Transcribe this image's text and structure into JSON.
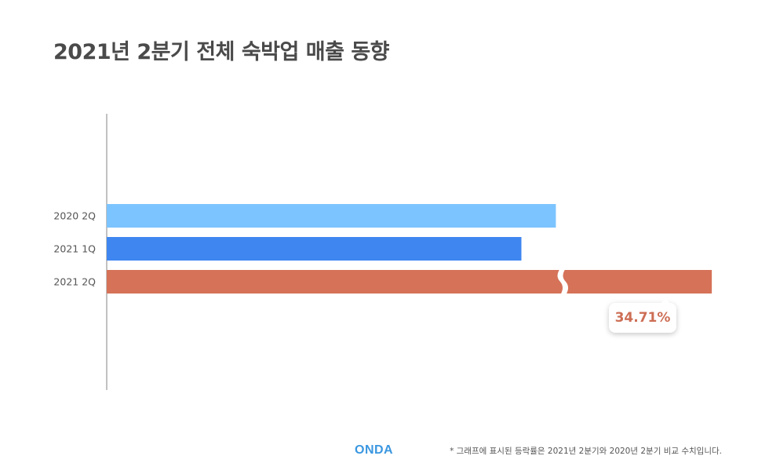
{
  "title": "2021년 2분기 전체 숙박업 매출 동향",
  "chart_data": {
    "type": "bar",
    "orientation": "horizontal",
    "categories": [
      "2020 2Q",
      "2021 1Q",
      "2021 2Q"
    ],
    "values": [
      79.5,
      73.4,
      107.1
    ],
    "colors": [
      "#7cc4ff",
      "#3f86f0",
      "#d57258"
    ],
    "axis_break_on": "2021 2Q",
    "callout": "34.71%",
    "grid": false,
    "legend": "none"
  },
  "logo_text": "ONDA",
  "footnote": "* 그래프에 표시된 등락률은 2021년 2분기와 2020년 2분기 비교 수치입니다."
}
